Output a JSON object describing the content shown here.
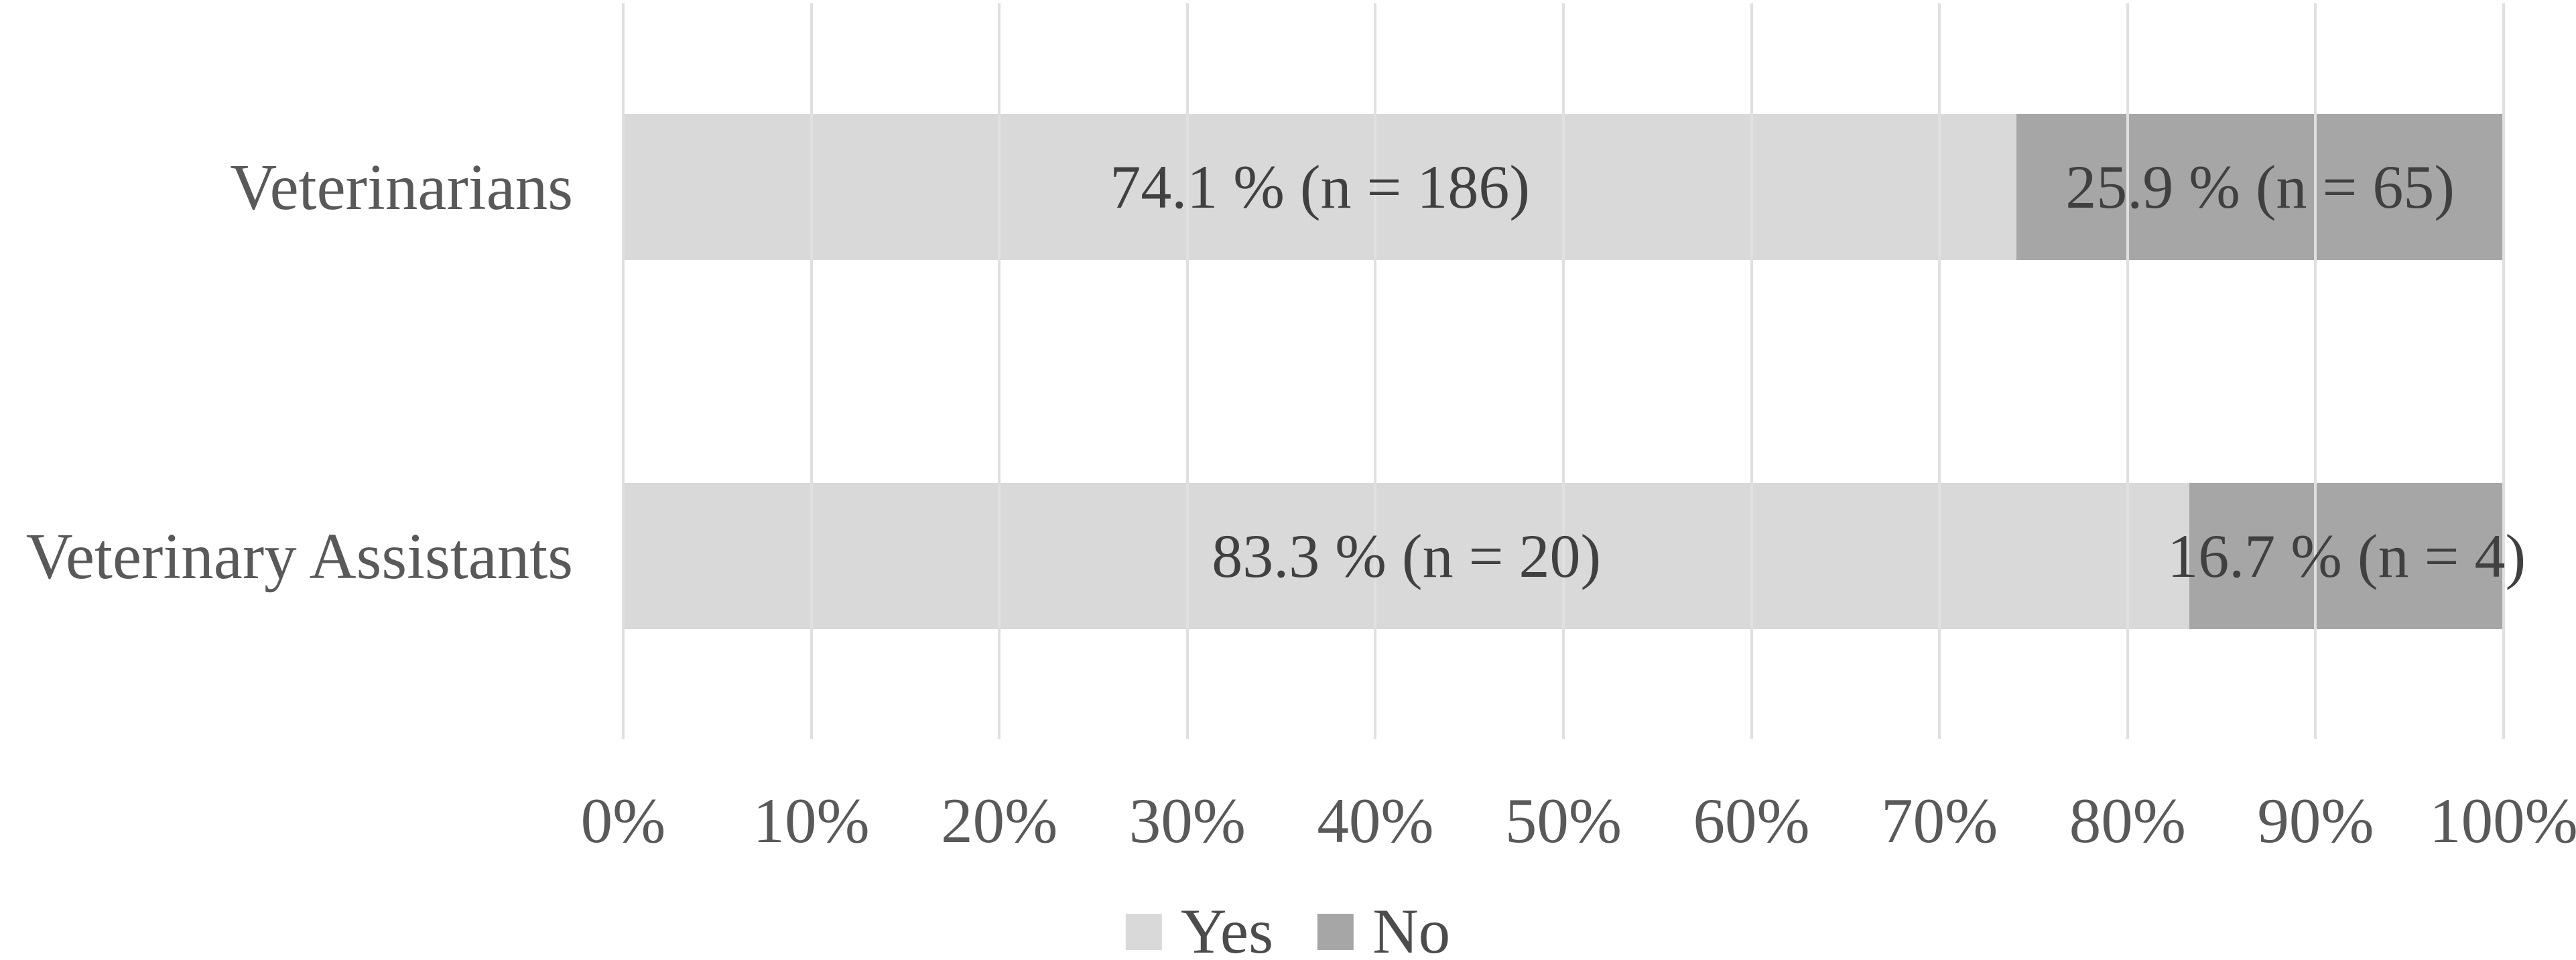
{
  "chart_data": {
    "type": "bar",
    "orientation": "horizontal",
    "stacked": true,
    "title": "",
    "xlabel": "",
    "ylabel": "",
    "categories": [
      "Veterinarians",
      "Veterinary Assistants"
    ],
    "series": [
      {
        "name": "Yes",
        "color": "#d9d9d9",
        "values": [
          74.1,
          83.3
        ],
        "counts": [
          186,
          20
        ],
        "labels": [
          "74.1 % (n = 186)",
          "83.3 % (n = 20)"
        ]
      },
      {
        "name": "No",
        "color": "#a6a6a6",
        "values": [
          25.9,
          16.7
        ],
        "counts": [
          65,
          4
        ],
        "labels": [
          "25.9 % (n = 65)",
          "16.7 % (n = 4)"
        ]
      }
    ],
    "x_axis": {
      "min": 0,
      "max": 100,
      "tick_step": 10,
      "ticks": [
        "0%",
        "10%",
        "20%",
        "30%",
        "40%",
        "50%",
        "60%",
        "70%",
        "80%",
        "90%",
        "100%"
      ],
      "grid": true
    },
    "legend": {
      "position": "bottom",
      "entries": [
        "Yes",
        "No"
      ]
    }
  },
  "styles": {
    "background": "#ffffff",
    "grid_color": "#e0e0e0",
    "bar_label_color": "#404040",
    "category_label_color": "#595959",
    "tick_label_color": "#595959",
    "legend_label_color": "#4c4c4c"
  }
}
